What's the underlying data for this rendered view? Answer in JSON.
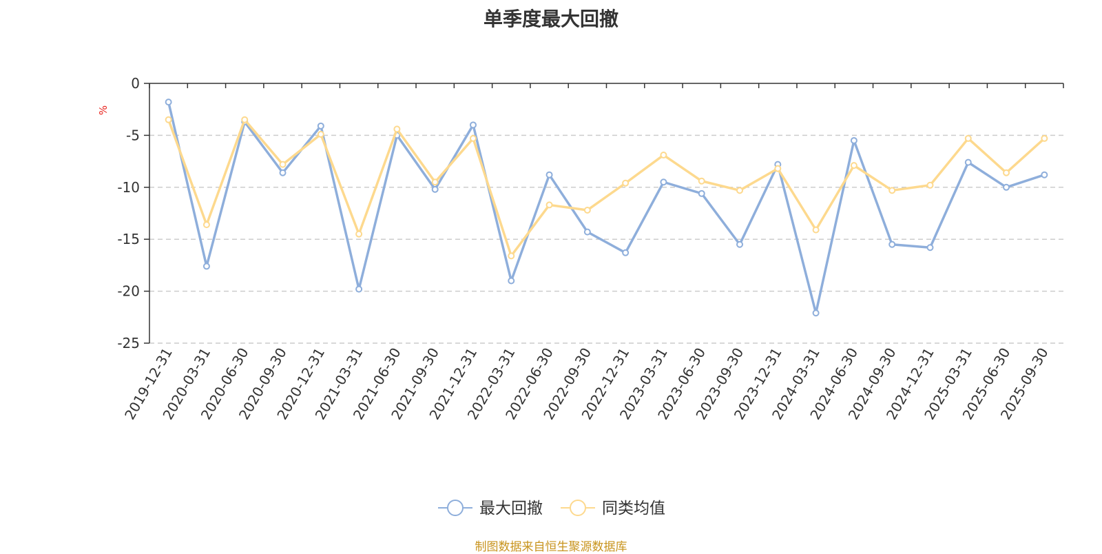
{
  "chart_data": {
    "type": "line",
    "title": "单季度最大回撤",
    "ylabel": "%",
    "ylim": [
      -25,
      0
    ],
    "yticks": [
      0,
      -5,
      -10,
      -15,
      -20,
      -25
    ],
    "grid": true,
    "legend_position": "bottom-center",
    "categories": [
      "2019-12-31",
      "2020-03-31",
      "2020-06-30",
      "2020-09-30",
      "2020-12-31",
      "2021-03-31",
      "2021-06-30",
      "2021-09-30",
      "2021-12-31",
      "2022-03-31",
      "2022-06-30",
      "2022-09-30",
      "2022-12-31",
      "2023-03-31",
      "2023-06-30",
      "2023-09-30",
      "2023-12-31",
      "2024-03-31",
      "2024-06-30",
      "2024-09-30",
      "2024-12-31",
      "2025-03-31",
      "2025-06-30",
      "2025-09-30"
    ],
    "series": [
      {
        "name": "最大回撤",
        "color": "#8eaedb",
        "values": [
          -1.8,
          -17.6,
          -3.7,
          -8.6,
          -4.1,
          -19.8,
          -5.0,
          -10.2,
          -4.0,
          -19.0,
          -8.8,
          -14.3,
          -16.3,
          -9.5,
          -10.6,
          -15.5,
          -7.8,
          -22.1,
          -5.5,
          -15.5,
          -15.8,
          -7.6,
          -10.0,
          -8.8
        ]
      },
      {
        "name": "同类均值",
        "color": "#fdd98e",
        "values": [
          -3.5,
          -13.6,
          -3.5,
          -7.8,
          -4.9,
          -14.5,
          -4.4,
          -9.5,
          -5.3,
          -16.6,
          -11.7,
          -12.2,
          -9.6,
          -6.9,
          -9.4,
          -10.3,
          -8.2,
          -14.1,
          -7.9,
          -10.3,
          -9.8,
          -5.3,
          -8.6,
          -5.3
        ]
      }
    ]
  },
  "footer": "制图数据来自恒生聚源数据库"
}
